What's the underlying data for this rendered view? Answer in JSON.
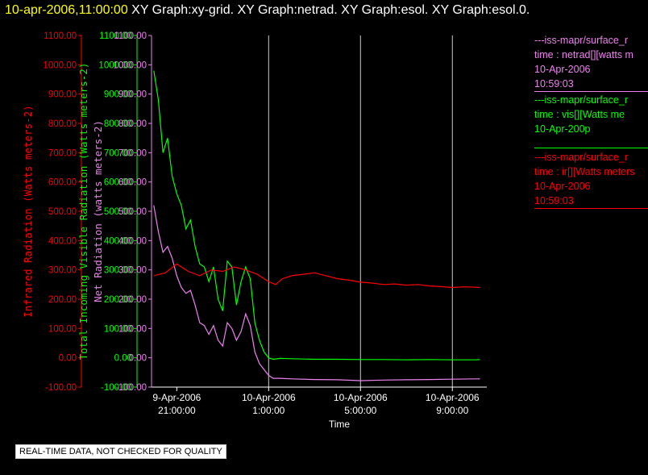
{
  "header": {
    "timestamp": "10-apr-2006,11:00:00",
    "titles": "XY Graph:xy-grid.  XY Graph:netrad.  XY Graph:esol.  XY Graph:esol.0."
  },
  "legend": [
    {
      "name": "netrad",
      "color": "#ee82ee",
      "lines": [
        "---iss-mapr/surface_r",
        "time : netrad[][watts m",
        "10-Apr-2006",
        "10:59:03"
      ]
    },
    {
      "name": "vis",
      "color": "#00ff00",
      "lines": [
        "---iss-mapr/surface_r",
        "time : vis[][Watts me",
        "10-Apr-200p"
      ]
    },
    {
      "name": "ir",
      "color": "#ff0000",
      "lines": [
        "---iss-mapr/surface_r",
        "time : ir[][Watts meters",
        "10-Apr-2006",
        "10:59:03"
      ]
    }
  ],
  "notice": "REAL-TIME DATA, NOT CHECKED FOR QUALITY",
  "chart_data": {
    "type": "line",
    "xlabel": "Time",
    "x_ticks": [
      {
        "date": "9-Apr-2006",
        "time": "21:00:00",
        "hour": 21
      },
      {
        "date": "10-Apr-2006",
        "time": "1:00:00",
        "hour": 25
      },
      {
        "date": "10-Apr-2006",
        "time": "5:00:00",
        "hour": 29
      },
      {
        "date": "10-Apr-2006",
        "time": "9:00:00",
        "hour": 33
      }
    ],
    "xlim": [
      19.9,
      34.5
    ],
    "grid": "vertical",
    "y_axes": [
      {
        "label": "Infrared Radiation (Watts meters-2)",
        "color": "#ff0000",
        "ticks": [
          "-100.00",
          "0.00",
          "100.00",
          "200.00",
          "300.00",
          "400.00",
          "500.00",
          "600.00",
          "700.00",
          "800.00",
          "900.00",
          "1000.00",
          "1100.00"
        ],
        "ylim": [
          -100,
          1100
        ]
      },
      {
        "label": "Total Incoming Visible Radiation (Watts meters-2)",
        "color": "#00ff00",
        "ticks": [
          "-100.00",
          "0.00",
          "100.00",
          "200.00",
          "300.00",
          "400.00",
          "500.00",
          "600.00",
          "700.00",
          "800.00",
          "900.00",
          "1000.00",
          "1100.00"
        ],
        "ylim": [
          -100,
          1100
        ]
      },
      {
        "label": "Net Radiation (watts meters-2)",
        "color": "#ee82ee",
        "ticks": [
          "-100.00",
          "0.00",
          "100.00",
          "200.00",
          "300.00",
          "400.00",
          "500.00",
          "600.00",
          "700.00",
          "800.00",
          "900.00",
          "1000.00",
          "1100.00"
        ],
        "ylim": [
          -100,
          1100
        ]
      }
    ],
    "series": [
      {
        "name": "vis",
        "color": "#00ff00",
        "x": [
          20.0,
          20.2,
          20.4,
          20.6,
          20.8,
          21.0,
          21.2,
          21.4,
          21.6,
          21.8,
          22.0,
          22.2,
          22.4,
          22.6,
          22.8,
          23.0,
          23.2,
          23.4,
          23.6,
          23.8,
          24.0,
          24.2,
          24.4,
          24.6,
          24.8,
          25.0,
          25.2,
          25.5,
          26.0,
          27.0,
          28.0,
          29.0,
          30.0,
          31.0,
          32.0,
          33.0,
          34.0,
          34.2
        ],
        "y": [
          980,
          880,
          700,
          750,
          620,
          560,
          520,
          440,
          470,
          380,
          320,
          310,
          260,
          310,
          200,
          160,
          330,
          310,
          180,
          260,
          310,
          270,
          120,
          60,
          20,
          0,
          -5,
          -2,
          -3,
          -5,
          -5,
          -6,
          -6,
          -7,
          -6,
          -7,
          -7,
          -6
        ]
      },
      {
        "name": "netrad",
        "color": "#ee82ee",
        "x": [
          20.0,
          20.2,
          20.4,
          20.6,
          20.8,
          21.0,
          21.2,
          21.4,
          21.6,
          21.8,
          22.0,
          22.2,
          22.4,
          22.6,
          22.8,
          23.0,
          23.2,
          23.4,
          23.6,
          23.8,
          24.0,
          24.2,
          24.4,
          24.6,
          24.8,
          25.0,
          25.2,
          25.5,
          26.0,
          27.0,
          28.0,
          29.0,
          30.0,
          31.0,
          32.0,
          33.0,
          34.0,
          34.2
        ],
        "y": [
          520,
          430,
          360,
          380,
          340,
          280,
          240,
          220,
          230,
          180,
          120,
          110,
          80,
          110,
          60,
          40,
          120,
          100,
          60,
          90,
          150,
          110,
          20,
          -20,
          -40,
          -60,
          -70,
          -70,
          -72,
          -74,
          -75,
          -78,
          -76,
          -75,
          -74,
          -73,
          -72,
          -72
        ]
      },
      {
        "name": "ir",
        "color": "#ff0000",
        "x": [
          20.0,
          20.5,
          21.0,
          21.5,
          22.0,
          22.5,
          23.0,
          23.5,
          24.0,
          24.5,
          25.0,
          25.3,
          25.6,
          26.0,
          26.5,
          27.0,
          27.5,
          28.0,
          28.5,
          29.0,
          29.5,
          30.0,
          30.5,
          31.0,
          31.5,
          32.0,
          32.5,
          33.0,
          33.5,
          34.0,
          34.2
        ],
        "y": [
          280,
          290,
          320,
          295,
          280,
          300,
          295,
          310,
          300,
          285,
          260,
          250,
          270,
          280,
          285,
          290,
          280,
          270,
          265,
          258,
          255,
          250,
          252,
          248,
          250,
          245,
          243,
          240,
          242,
          241,
          240
        ]
      }
    ]
  }
}
